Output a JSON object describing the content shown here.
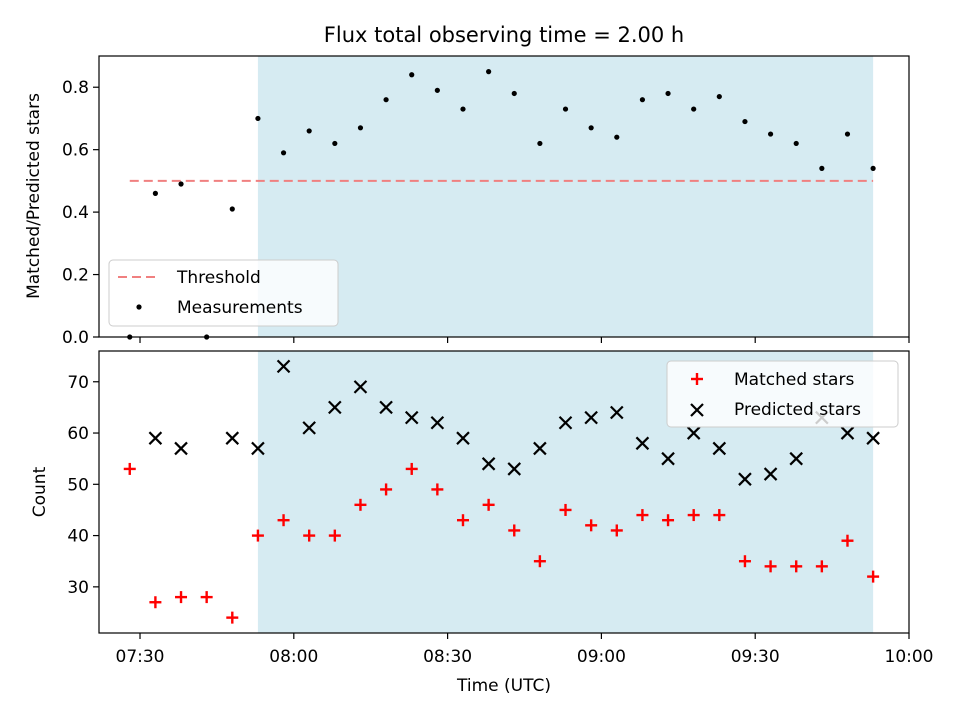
{
  "chart_data": [
    {
      "type": "scatter",
      "title": "Flux total observing time = 2.00 h",
      "xlabel": "",
      "ylabel": "Matched/Predicted stars",
      "xlim": [
        "07:22",
        "10:00"
      ],
      "ylim": [
        0,
        0.9
      ],
      "yticks": [
        0.0,
        0.2,
        0.4,
        0.6,
        0.8
      ],
      "ytick_labels": [
        "0.0",
        "0.2",
        "0.4",
        "0.6",
        "0.8"
      ],
      "shaded_interval": [
        "07:53",
        "09:53"
      ],
      "shade_color": "#add8e6",
      "threshold": {
        "name": "Threshold",
        "y": 0.5,
        "x_range": [
          "07:28",
          "09:53"
        ],
        "color": "#f08080"
      },
      "series": [
        {
          "name": "Measurements",
          "color": "#000000",
          "x": [
            "07:28",
            "07:33",
            "07:38",
            "07:43",
            "07:48",
            "07:53",
            "07:58",
            "08:03",
            "08:08",
            "08:13",
            "08:18",
            "08:23",
            "08:28",
            "08:33",
            "08:38",
            "08:43",
            "08:48",
            "08:53",
            "08:58",
            "09:03",
            "09:08",
            "09:13",
            "09:18",
            "09:23",
            "09:28",
            "09:33",
            "09:38",
            "09:43",
            "09:48",
            "09:53"
          ],
          "y": [
            0.0,
            0.46,
            0.49,
            0.0,
            0.41,
            0.7,
            0.59,
            0.66,
            0.62,
            0.67,
            0.76,
            0.84,
            0.79,
            0.73,
            0.85,
            0.78,
            0.62,
            0.73,
            0.67,
            0.64,
            0.76,
            0.78,
            0.73,
            0.77,
            0.69,
            0.65,
            0.62,
            0.54,
            0.65,
            0.54
          ]
        }
      ],
      "legend": {
        "placement": "lower-left",
        "entries": [
          "Threshold",
          "Measurements"
        ]
      }
    },
    {
      "type": "scatter",
      "title": "",
      "xlabel": "Time (UTC)",
      "ylabel": "Count",
      "xlim": [
        "07:22",
        "10:00"
      ],
      "ylim": [
        21,
        76
      ],
      "yticks": [
        30,
        40,
        50,
        60,
        70
      ],
      "ytick_labels": [
        "30",
        "40",
        "50",
        "60",
        "70"
      ],
      "xticks": [
        "07:30",
        "08:00",
        "08:30",
        "09:00",
        "09:30",
        "10:00"
      ],
      "xtick_labels": [
        "07:30",
        "08:00",
        "08:30",
        "09:00",
        "09:30",
        "10:00"
      ],
      "shaded_interval": [
        "07:53",
        "09:53"
      ],
      "shade_color": "#add8e6",
      "series": [
        {
          "name": "Matched stars",
          "marker": "plus",
          "color": "#ff0000",
          "x": [
            "07:28",
            "07:33",
            "07:38",
            "07:43",
            "07:48",
            "07:53",
            "07:58",
            "08:03",
            "08:08",
            "08:13",
            "08:18",
            "08:23",
            "08:28",
            "08:33",
            "08:38",
            "08:43",
            "08:48",
            "08:53",
            "08:58",
            "09:03",
            "09:08",
            "09:13",
            "09:18",
            "09:23",
            "09:28",
            "09:33",
            "09:38",
            "09:43",
            "09:48",
            "09:53"
          ],
          "y": [
            53,
            27,
            28,
            28,
            24,
            40,
            43,
            40,
            40,
            46,
            49,
            53,
            49,
            43,
            46,
            41,
            35,
            45,
            42,
            41,
            44,
            43,
            44,
            44,
            35,
            34,
            34,
            34,
            39,
            32
          ]
        },
        {
          "name": "Predicted stars",
          "marker": "x",
          "color": "#000000",
          "x": [
            "07:33",
            "07:38",
            "07:48",
            "07:53",
            "07:58",
            "08:03",
            "08:08",
            "08:13",
            "08:18",
            "08:23",
            "08:28",
            "08:33",
            "08:38",
            "08:43",
            "08:48",
            "08:53",
            "08:58",
            "09:03",
            "09:08",
            "09:13",
            "09:18",
            "09:23",
            "09:28",
            "09:33",
            "09:38",
            "09:43",
            "09:48",
            "09:53"
          ],
          "y": [
            59,
            57,
            59,
            57,
            73,
            61,
            65,
            69,
            65,
            63,
            62,
            59,
            54,
            53,
            57,
            62,
            63,
            64,
            58,
            55,
            60,
            57,
            51,
            52,
            55,
            63,
            60,
            59
          ]
        }
      ],
      "legend": {
        "placement": "top-right",
        "entries": [
          "Matched stars",
          "Predicted stars"
        ]
      }
    }
  ]
}
